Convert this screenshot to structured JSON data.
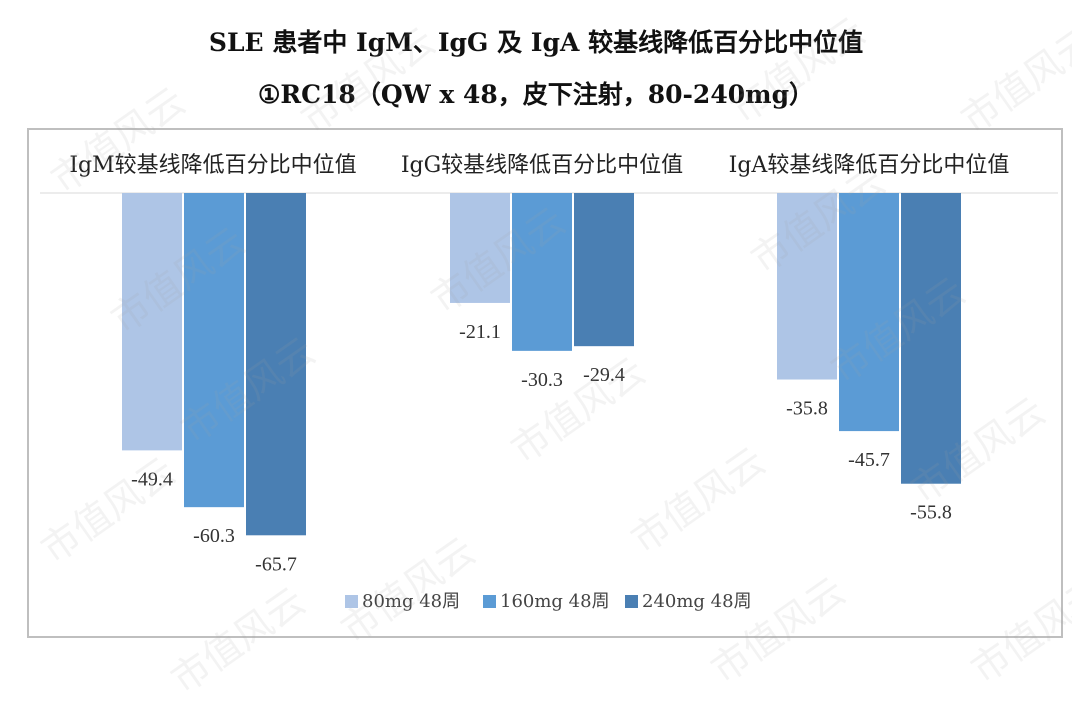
{
  "title": "SLE 患者中 IgM、IgG 及 IgA 较基线降低百分比中位值",
  "subtitle": "①RC18（QW x 48，皮下注射，80-240mg）",
  "watermark": "市值风云",
  "colors": {
    "s80": "#aec5e6",
    "s160": "#5b9bd5",
    "s240": "#4a7fb3",
    "label": "#333333",
    "axis": "#d9d9d9"
  },
  "chart_data": {
    "type": "bar",
    "categories": [
      "IgM较基线降低百分比中位值",
      "IgG较基线降低百分比中位值",
      "IgA较基线降低百分比中位值"
    ],
    "series": [
      {
        "name": "80mg 48周",
        "values": [
          -49.4,
          -21.1,
          -35.8
        ]
      },
      {
        "name": "160mg 48周",
        "values": [
          -60.3,
          -30.3,
          -45.7
        ]
      },
      {
        "name": "240mg 48周",
        "values": [
          -65.7,
          -29.4,
          -55.8
        ]
      }
    ],
    "ylim": [
      -66,
      0
    ],
    "legend": "bottom",
    "grid": false
  }
}
